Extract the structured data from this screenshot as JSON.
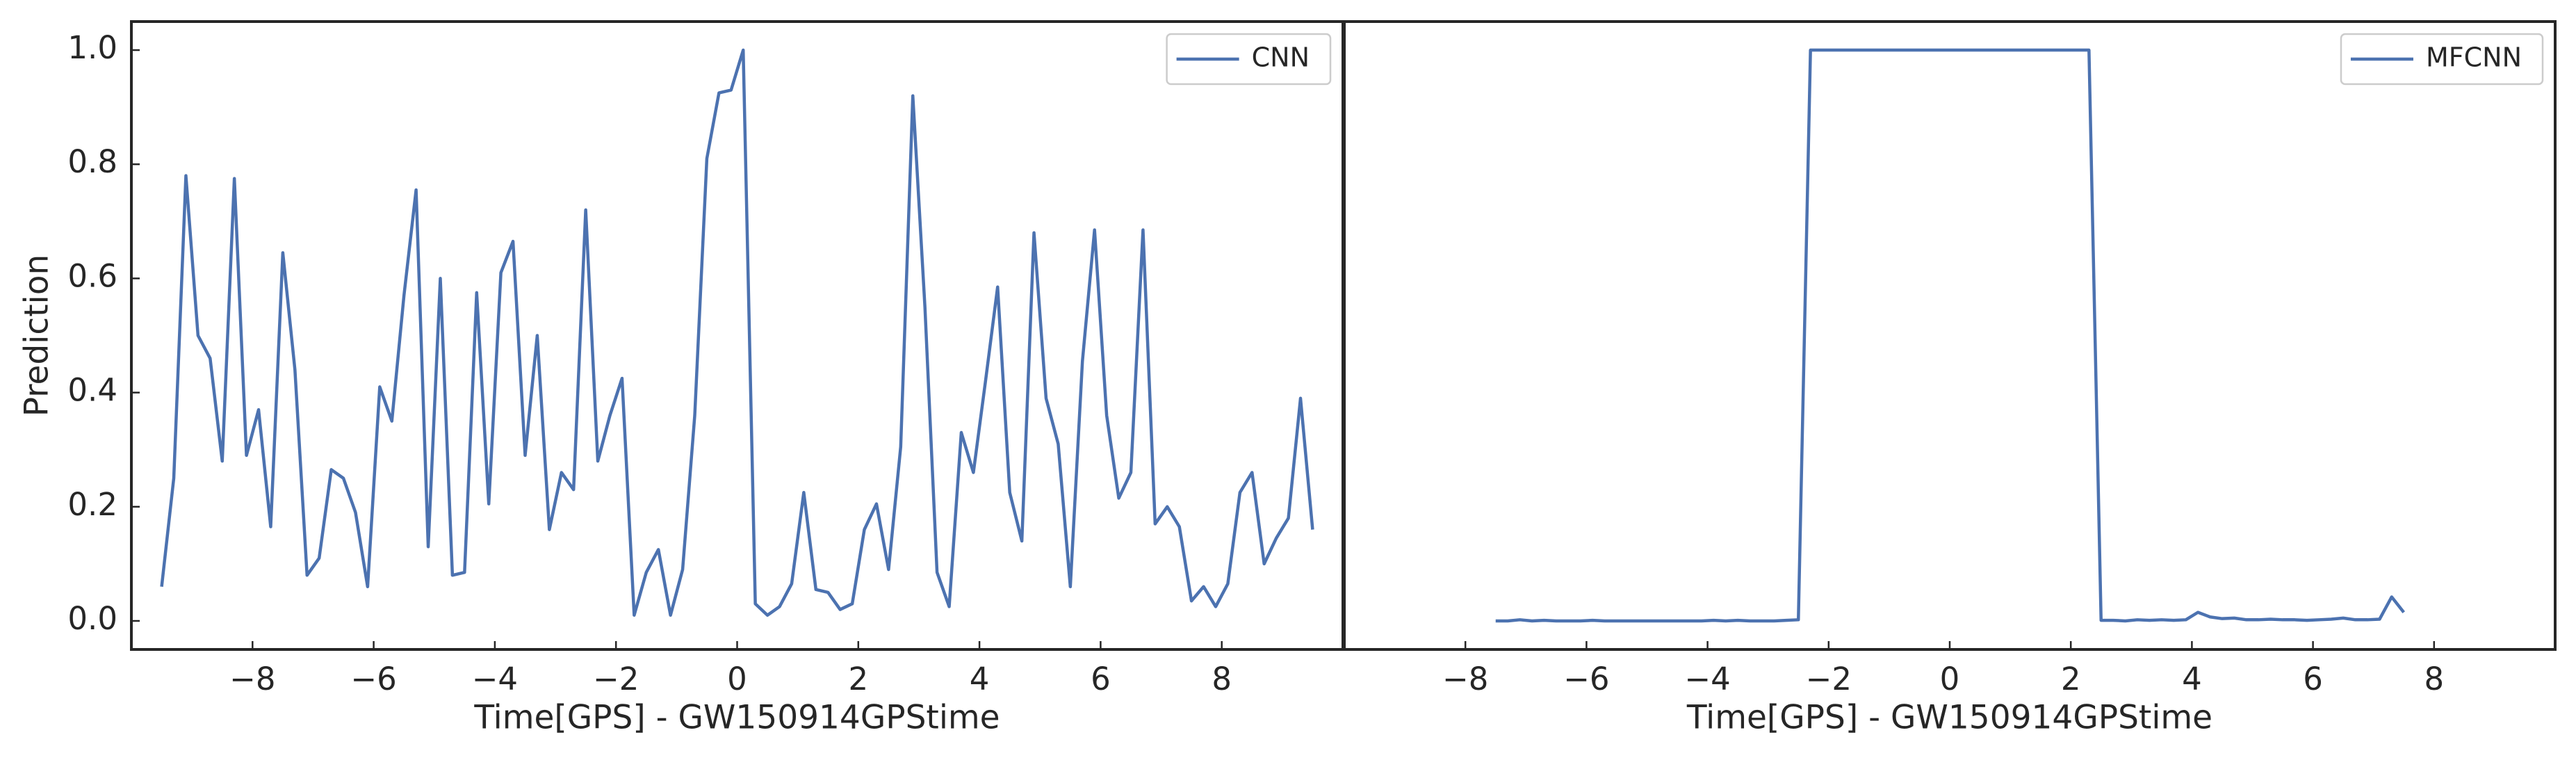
{
  "chart_data": [
    {
      "type": "line",
      "xlabel": "Time[GPS] - GW150914GPStime",
      "ylabel": "Prediction",
      "legend": "upper right",
      "x": [
        -9.5,
        -9.3,
        -9.1,
        -8.9,
        -8.7,
        -8.5,
        -8.3,
        -8.1,
        -7.9,
        -7.7,
        -7.5,
        -7.3,
        -7.1,
        -6.9,
        -6.7,
        -6.5,
        -6.3,
        -6.1,
        -5.9,
        -5.7,
        -5.5,
        -5.3,
        -5.1,
        -4.9,
        -4.7,
        -4.5,
        -4.3,
        -4.1,
        -3.9,
        -3.7,
        -3.5,
        -3.3,
        -3.1,
        -2.9,
        -2.7,
        -2.5,
        -2.3,
        -2.1,
        -1.9,
        -1.7,
        -1.5,
        -1.3,
        -1.1,
        -0.9,
        -0.7,
        -0.5,
        -0.3,
        -0.1,
        0.1,
        0.3,
        0.5,
        0.7,
        0.9,
        1.1,
        1.3,
        1.5,
        1.7,
        1.9,
        2.1,
        2.3,
        2.5,
        2.7,
        2.9,
        3.1,
        3.3,
        3.5,
        3.7,
        3.9,
        4.1,
        4.3,
        4.5,
        4.7,
        4.9,
        5.1,
        5.3,
        5.5,
        5.7,
        5.9,
        6.1,
        6.3,
        6.5,
        6.7,
        6.9,
        7.1,
        7.3,
        7.5,
        7.7,
        7.9,
        8.1,
        8.3,
        8.5,
        8.7,
        8.9,
        9.1,
        9.3,
        9.5
      ],
      "series": [
        {
          "name": "CNN",
          "color": "#4c72b0",
          "values": [
            0.06,
            0.25,
            0.78,
            0.5,
            0.46,
            0.28,
            0.775,
            0.29,
            0.37,
            0.165,
            0.645,
            0.44,
            0.08,
            0.11,
            0.265,
            0.25,
            0.19,
            0.06,
            0.41,
            0.35,
            0.57,
            0.755,
            0.13,
            0.6,
            0.08,
            0.085,
            0.575,
            0.205,
            0.61,
            0.665,
            0.29,
            0.5,
            0.16,
            0.26,
            0.23,
            0.72,
            0.28,
            0.36,
            0.425,
            0.01,
            0.085,
            0.125,
            0.01,
            0.09,
            0.36,
            0.81,
            0.925,
            0.93,
            1.0,
            0.03,
            0.01,
            0.025,
            0.065,
            0.225,
            0.055,
            0.05,
            0.02,
            0.03,
            0.16,
            0.205,
            0.09,
            0.305,
            0.92,
            0.55,
            0.085,
            0.025,
            0.33,
            0.26,
            0.42,
            0.585,
            0.225,
            0.14,
            0.68,
            0.39,
            0.31,
            0.06,
            0.455,
            0.685,
            0.36,
            0.215,
            0.26,
            0.685,
            0.17,
            0.2,
            0.165,
            0.035,
            0.06,
            0.025,
            0.065,
            0.225,
            0.26,
            0.1,
            0.145,
            0.18,
            0.39,
            0.16
          ]
        }
      ],
      "xlim": [
        -10,
        10
      ],
      "ylim": [
        -0.05,
        1.05
      ],
      "xticks": [
        {
          "value": -8,
          "label": "−8"
        },
        {
          "value": -6,
          "label": "−6"
        },
        {
          "value": -4,
          "label": "−4"
        },
        {
          "value": -2,
          "label": "−2"
        },
        0,
        2,
        4,
        6,
        8
      ],
      "yticks": [
        {
          "value": 0,
          "label": "0.0"
        },
        0.2,
        0.4,
        0.6,
        0.8,
        {
          "value": 1,
          "label": "1.0"
        }
      ]
    },
    {
      "type": "line",
      "xlabel": "Time[GPS] - GW150914GPStime",
      "legend": "upper right",
      "x": [
        -7.5,
        -7.3,
        -7.1,
        -6.9,
        -6.7,
        -6.5,
        -6.3,
        -6.1,
        -5.9,
        -5.7,
        -5.5,
        -5.3,
        -5.1,
        -4.9,
        -4.7,
        -4.5,
        -4.3,
        -4.1,
        -3.9,
        -3.7,
        -3.5,
        -3.3,
        -3.1,
        -2.9,
        -2.7,
        -2.5,
        -2.3,
        -2.1,
        -1.9,
        -1.7,
        -1.5,
        -1.3,
        -1.1,
        -0.9,
        -0.7,
        -0.5,
        -0.3,
        -0.1,
        0.1,
        0.3,
        0.5,
        0.7,
        0.9,
        1.1,
        1.3,
        1.5,
        1.7,
        1.9,
        2.1,
        2.3,
        2.5,
        2.7,
        2.9,
        3.1,
        3.3,
        3.5,
        3.7,
        3.9,
        4.1,
        4.3,
        4.5,
        4.7,
        4.9,
        5.1,
        5.3,
        5.5,
        5.7,
        5.9,
        6.1,
        6.3,
        6.5,
        6.7,
        6.9,
        7.1,
        7.3,
        7.5
      ],
      "series": [
        {
          "name": "MFCNN",
          "color": "#4c72b0",
          "values": [
            0,
            0,
            0.002,
            0,
            0.001,
            0,
            0,
            0,
            0.001,
            0,
            0,
            0,
            0,
            0,
            0,
            0,
            0,
            0,
            0.001,
            0,
            0.001,
            0,
            0,
            0,
            0.001,
            0.002,
            1,
            1,
            1,
            1,
            1,
            1,
            1,
            1,
            1,
            1,
            1,
            1,
            1,
            1,
            1,
            1,
            1,
            1,
            1,
            1,
            1,
            1,
            1,
            1,
            0.001,
            0.001,
            0,
            0.002,
            0.001,
            0.002,
            0.001,
            0.002,
            0.015,
            0.007,
            0.004,
            0.005,
            0.002,
            0.002,
            0.003,
            0.002,
            0.002,
            0.001,
            0.002,
            0.003,
            0.005,
            0.002,
            0.002,
            0.003,
            0.042,
            0.015
          ]
        }
      ],
      "xlim": [
        -10,
        10
      ],
      "ylim": [
        -0.05,
        1.05
      ],
      "xticks": [
        {
          "value": -8,
          "label": "−8"
        },
        {
          "value": -6,
          "label": "−6"
        },
        {
          "value": -4,
          "label": "−4"
        },
        {
          "value": -2,
          "label": "−2"
        },
        0,
        2,
        4,
        6,
        8
      ]
    }
  ]
}
